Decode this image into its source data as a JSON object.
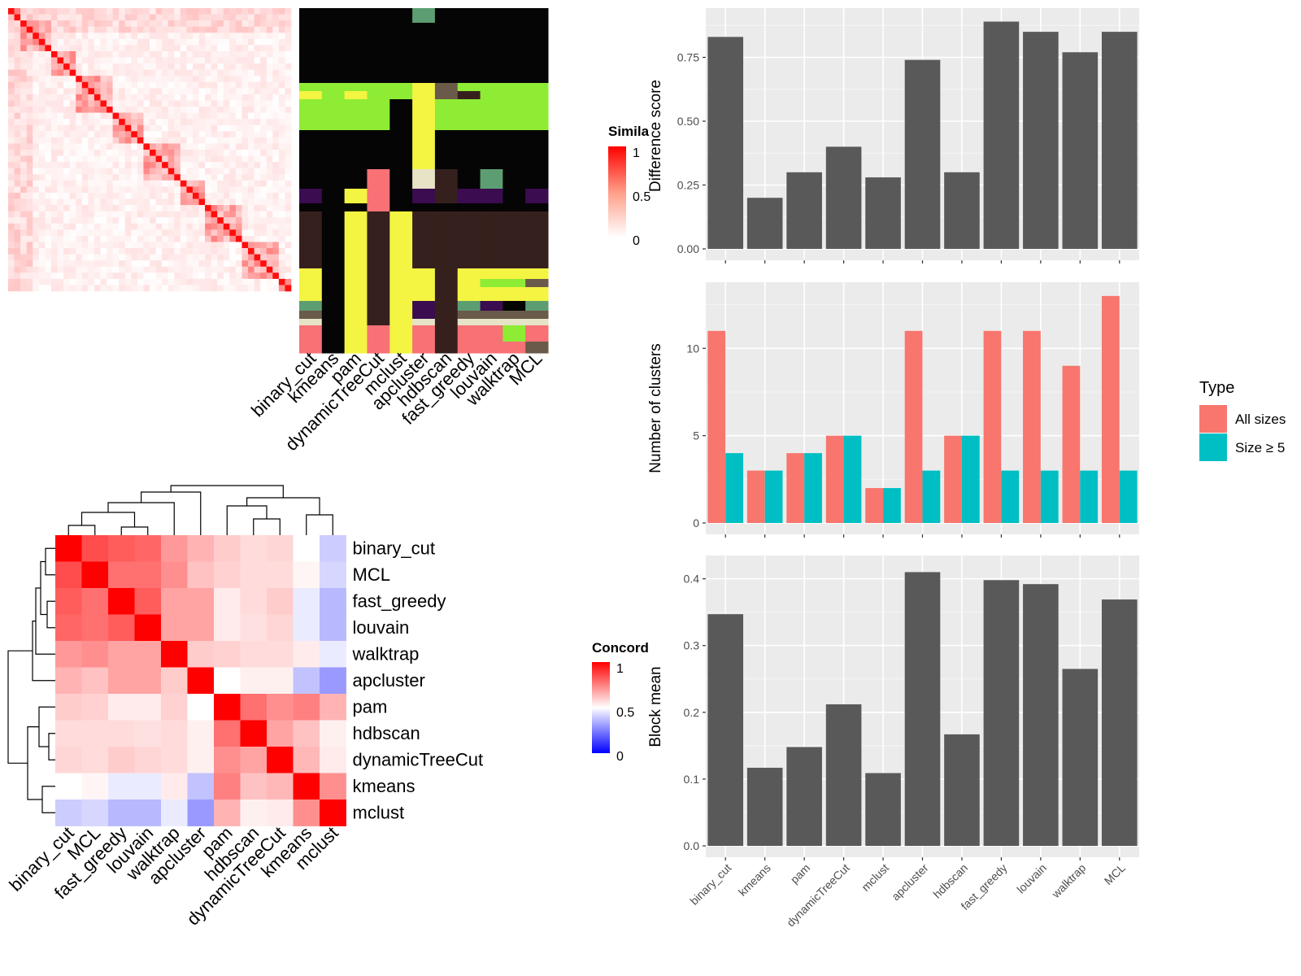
{
  "methods_heat": [
    "binary_cut",
    "kmeans",
    "pam",
    "dynamicTreeCut",
    "mclust",
    "apcluster",
    "hdbscan",
    "fast_greedy",
    "louvain",
    "walktrap",
    "MCL"
  ],
  "methods_bar": [
    "binary_cut",
    "kmeans",
    "pam",
    "dynamicTreeCut",
    "mclust",
    "apcluster",
    "hdbscan",
    "fast_greedy",
    "louvain",
    "walktrap",
    "MCL"
  ],
  "similarity_legend": {
    "title": "Simila",
    "ticks": [
      "1",
      "0.5",
      "0"
    ]
  },
  "concordance_legend": {
    "title": "Concord",
    "ticks": [
      "1",
      "0.5",
      "0"
    ]
  },
  "colors": {
    "bar_gray": "#595959",
    "panel_bg": "#ebebeb",
    "all_sizes": "#F8766D",
    "size_ge5": "#00BFC4",
    "heat_red": "#ff0000",
    "heat_blue": "#0000ff"
  },
  "concordance": {
    "order": [
      "binary_cut",
      "MCL",
      "fast_greedy",
      "louvain",
      "walktrap",
      "apcluster",
      "pam",
      "hdbscan",
      "dynamicTreeCut",
      "kmeans",
      "mclust"
    ],
    "matrix": [
      [
        1.0,
        0.85,
        0.82,
        0.8,
        0.7,
        0.65,
        0.6,
        0.57,
        0.58,
        0.5,
        0.4
      ],
      [
        0.85,
        1.0,
        0.78,
        0.78,
        0.72,
        0.62,
        0.59,
        0.57,
        0.57,
        0.52,
        0.42
      ],
      [
        0.82,
        0.78,
        1.0,
        0.82,
        0.68,
        0.68,
        0.54,
        0.57,
        0.6,
        0.46,
        0.36
      ],
      [
        0.8,
        0.78,
        0.82,
        1.0,
        0.68,
        0.68,
        0.54,
        0.56,
        0.58,
        0.46,
        0.36
      ],
      [
        0.7,
        0.72,
        0.68,
        0.68,
        1.0,
        0.6,
        0.59,
        0.57,
        0.57,
        0.54,
        0.46
      ],
      [
        0.65,
        0.62,
        0.68,
        0.68,
        0.6,
        1.0,
        0.5,
        0.53,
        0.53,
        0.38,
        0.3
      ],
      [
        0.6,
        0.59,
        0.54,
        0.54,
        0.59,
        0.5,
        1.0,
        0.78,
        0.72,
        0.75,
        0.65
      ],
      [
        0.57,
        0.57,
        0.57,
        0.56,
        0.57,
        0.53,
        0.78,
        1.0,
        0.68,
        0.62,
        0.53
      ],
      [
        0.58,
        0.57,
        0.6,
        0.58,
        0.57,
        0.53,
        0.72,
        0.68,
        1.0,
        0.64,
        0.54
      ],
      [
        0.5,
        0.52,
        0.46,
        0.46,
        0.54,
        0.38,
        0.75,
        0.62,
        0.64,
        1.0,
        0.72
      ],
      [
        0.4,
        0.42,
        0.36,
        0.36,
        0.46,
        0.3,
        0.65,
        0.53,
        0.54,
        0.72,
        1.0
      ]
    ]
  },
  "chart_data": [
    {
      "type": "bar",
      "ylabel": "Difference score",
      "categories": [
        "binary_cut",
        "kmeans",
        "pam",
        "dynamicTreeCut",
        "mclust",
        "apcluster",
        "hdbscan",
        "fast_greedy",
        "louvain",
        "walktrap",
        "MCL"
      ],
      "values": [
        0.83,
        0.2,
        0.3,
        0.4,
        0.28,
        0.74,
        0.3,
        0.89,
        0.85,
        0.77,
        0.85
      ],
      "ylim": [
        0,
        0.93
      ],
      "yticks": [
        "0.00",
        "0.25",
        "0.50",
        "0.75"
      ],
      "ytick_values": [
        0,
        0.25,
        0.5,
        0.75
      ]
    },
    {
      "type": "bar",
      "ylabel": "Number of clusters",
      "categories": [
        "binary_cut",
        "kmeans",
        "pam",
        "dynamicTreeCut",
        "mclust",
        "apcluster",
        "hdbscan",
        "fast_greedy",
        "louvain",
        "walktrap",
        "MCL"
      ],
      "series": [
        {
          "name": "All sizes",
          "values": [
            11,
            3,
            4,
            5,
            2,
            11,
            5,
            11,
            11,
            9,
            13
          ]
        },
        {
          "name": "Size ≥ 5",
          "values": [
            4,
            3,
            4,
            5,
            2,
            3,
            5,
            3,
            3,
            3,
            3
          ]
        }
      ],
      "legend_title": "Type",
      "ylim": [
        0,
        13.6
      ],
      "yticks": [
        "0",
        "5",
        "10"
      ],
      "ytick_values": [
        0,
        5,
        10
      ]
    },
    {
      "type": "bar",
      "ylabel": "Block mean",
      "categories": [
        "binary_cut",
        "kmeans",
        "pam",
        "dynamicTreeCut",
        "mclust",
        "apcluster",
        "hdbscan",
        "fast_greedy",
        "louvain",
        "walktrap",
        "MCL"
      ],
      "values": [
        0.347,
        0.117,
        0.148,
        0.212,
        0.109,
        0.41,
        0.167,
        0.398,
        0.392,
        0.265,
        0.369
      ],
      "ylim": [
        0,
        0.43
      ],
      "yticks": [
        "0.0",
        "0.1",
        "0.2",
        "0.3",
        "0.4"
      ],
      "ytick_values": [
        0,
        0.1,
        0.2,
        0.3,
        0.4
      ]
    }
  ]
}
